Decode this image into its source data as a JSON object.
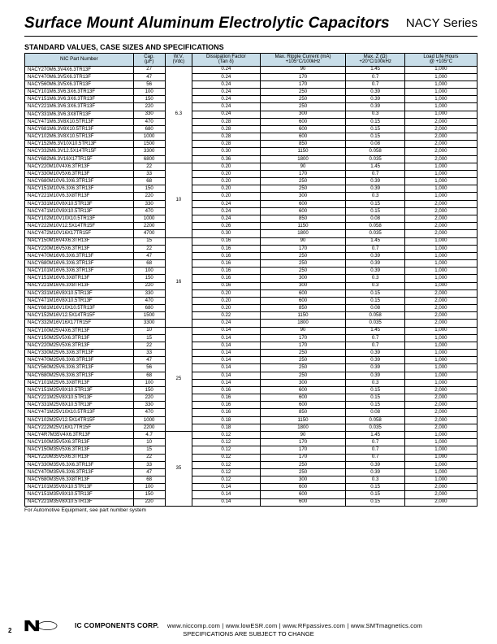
{
  "title": "Surface Mount Aluminum Electrolytic Capacitors",
  "series": "NACY Series",
  "subhead": "STANDARD VALUES, CASE SIZES AND SPECIFICATIONS",
  "columns": [
    "NIC Part Number",
    "Cap.\n(µF)",
    "W.V.\n(Vdc)",
    "Dissipation Factor\n(Tan δ)",
    "Max. Ripple Current (mA)\n+105°C/100kHz",
    "Max. Z (Ω)\n+20°C/100kHz",
    "Load Life Hours\n@ +105°C"
  ],
  "header_bg": "#c8dde8",
  "groups": [
    {
      "wv": "6.3",
      "rows": [
        [
          "NACY270M6.3V4X6.3TR13F",
          "27",
          "0.24",
          "90",
          "1.45",
          "1,000"
        ],
        [
          "NACY470M6.3V5X6.3TR13F",
          "47",
          "0.24",
          "170",
          "0.7",
          "1,000"
        ],
        [
          "NACY560M6.3V5X6.3TR13F",
          "56",
          "0.24",
          "170",
          "0.7",
          "1,000"
        ],
        [
          "NACY101M6.3V6.3X6.3TR13F",
          "100",
          "0.24",
          "250",
          "0.39",
          "1,000"
        ],
        [
          "NACY151M6.3V6.3X6.3TR13F",
          "150",
          "0.24",
          "250",
          "0.39",
          "1,000"
        ],
        [
          "NACY221M6.3V6.3X6.3TR13F",
          "220",
          "0.24",
          "250",
          "0.39",
          "1,000"
        ],
        [
          "NACY331M6.3V6.3X8TR13F",
          "330",
          "0.24",
          "300",
          "0.3",
          "1,000"
        ],
        [
          "NACY471M6.3V8X10.5TR13F",
          "470",
          "0.28",
          "600",
          "0.15",
          "2,000"
        ],
        [
          "NACY681M6.3V8X10.5TR13F",
          "680",
          "0.28",
          "600",
          "0.15",
          "2,000"
        ],
        [
          "NACY102M6.3V8X10.5TR13F",
          "1000",
          "0.28",
          "600",
          "0.15",
          "2,000"
        ],
        [
          "NACY152M6.3V10X10.5TR13F",
          "1500",
          "0.28",
          "850",
          "0.08",
          "2,000"
        ],
        [
          "NACY332M6.3V12.5X14TR15F",
          "3300",
          "0.30",
          "1150",
          "0.058",
          "2,000"
        ],
        [
          "NACY682M6.3V16X17TR15F",
          "6800",
          "0.36",
          "1800",
          "0.035",
          "2,000"
        ]
      ]
    },
    {
      "wv": "10",
      "rows": [
        [
          "NACY220M10V4X6.3TR13F",
          "22",
          "0.20",
          "90",
          "1.45",
          "1,000"
        ],
        [
          "NACY330M10V5X6.3TR13F",
          "33",
          "0.20",
          "170",
          "0.7",
          "1,000"
        ],
        [
          "NACY680M10V6.3X6.3TR13F",
          "68",
          "0.20",
          "250",
          "0.39",
          "1,000"
        ],
        [
          "NACY151M10V6.3X6.3TR13F",
          "150",
          "0.20",
          "250",
          "0.39",
          "1,000"
        ],
        [
          "NACY221M10V6.3X8TR13F",
          "220",
          "0.20",
          "300",
          "0.3",
          "1,000"
        ],
        [
          "NACY331M10V8X10.5TR13F",
          "330",
          "0.24",
          "600",
          "0.15",
          "2,000"
        ],
        [
          "NACY471M10V8X10.5TR13F",
          "470",
          "0.24",
          "600",
          "0.15",
          "2,000"
        ],
        [
          "NACY102M10V10X10.5TR13F",
          "1000",
          "0.24",
          "850",
          "0.08",
          "2,000"
        ],
        [
          "NACY222M10V12.5X14TR15F",
          "2200",
          "0.26",
          "1150",
          "0.058",
          "2,000"
        ],
        [
          "NACY472M10V16X17TR15F",
          "4700",
          "0.30",
          "1800",
          "0.035",
          "2,000"
        ]
      ]
    },
    {
      "wv": "16",
      "rows": [
        [
          "NACY150M16V4X6.3TR13F",
          "15",
          "0.16",
          "90",
          "1.45",
          "1,000"
        ],
        [
          "NACY220M16V5X6.3TR13F",
          "22",
          "0.16",
          "170",
          "0.7",
          "1,000"
        ],
        [
          "NACY470M16V6.3X6.3TR13F",
          "47",
          "0.16",
          "250",
          "0.39",
          "1,000"
        ],
        [
          "NACY680M16V6.3X6.3TR13F",
          "68",
          "0.16",
          "250",
          "0.39",
          "1,000"
        ],
        [
          "NACY101M16V6.3X6.3TR13F",
          "100",
          "0.16",
          "250",
          "0.39",
          "1,000"
        ],
        [
          "NACY151M16V6.3X8TR13F",
          "150",
          "0.16",
          "300",
          "0.3",
          "1,000"
        ],
        [
          "NACY221M16V6.3X8TR13F",
          "220",
          "0.16",
          "300",
          "0.3",
          "1,000"
        ],
        [
          "NACY331M16V8X10.5TR13F",
          "330",
          "0.20",
          "600",
          "0.15",
          "2,000"
        ],
        [
          "NACY471M16V8X10.5TR13F",
          "470",
          "0.20",
          "600",
          "0.15",
          "2,000"
        ],
        [
          "NACY681M16V10X10.5TR13F",
          "680",
          "0.20",
          "850",
          "0.08",
          "2,000"
        ],
        [
          "NACY152M16V12.5X14TR15F",
          "1500",
          "0.22",
          "1150",
          "0.058",
          "2,000"
        ],
        [
          "NACY332M16V16X17TR15F",
          "3300",
          "0.24",
          "1800",
          "0.035",
          "2,000"
        ]
      ]
    },
    {
      "wv": "25",
      "rows": [
        [
          "NACY100M25V4X6.3TR13F",
          "10",
          "0.14",
          "90",
          "1.45",
          "1,000"
        ],
        [
          "NACY150M25V5X6.3TR13F",
          "15",
          "0.14",
          "170",
          "0.7",
          "1,000"
        ],
        [
          "NACY220M25V5X6.3TR13F",
          "22",
          "0.14",
          "170",
          "0.7",
          "1,000"
        ],
        [
          "NACY330M25V6.3X6.3TR13F",
          "33",
          "0.14",
          "250",
          "0.39",
          "1,000"
        ],
        [
          "NACY470M25V6.3X6.3TR13F",
          "47",
          "0.14",
          "250",
          "0.39",
          "1,000"
        ],
        [
          "NACY560M25V6.3X6.3TR13F",
          "56",
          "0.14",
          "250",
          "0.39",
          "1,000"
        ],
        [
          "NACY680M25V6.3X6.3TR13F",
          "68",
          "0.14",
          "250",
          "0.39",
          "1,000"
        ],
        [
          "NACY101M25V6.3X8TR13F",
          "100",
          "0.14",
          "300",
          "0.3",
          "1,000"
        ],
        [
          "NACY151M25V8X10.5TR13F",
          "150",
          "0.16",
          "600",
          "0.15",
          "2,000"
        ],
        [
          "NACY221M25V8X10.5TR13F",
          "220",
          "0.16",
          "600",
          "0.15",
          "2,000"
        ],
        [
          "NACY331M25V8X10.5TR13F",
          "330",
          "0.16",
          "600",
          "0.15",
          "2,000"
        ],
        [
          "NACY471M25V10X10.5TR13F",
          "470",
          "0.16",
          "850",
          "0.08",
          "2,000"
        ],
        [
          "NACY102M25V12.5X14TR15F",
          "1000",
          "0.18",
          "1150",
          "0.058",
          "2,000"
        ],
        [
          "NACY222M25V16X17TR15F",
          "2200",
          "0.18",
          "1800",
          "0.035",
          "2,000"
        ]
      ]
    },
    {
      "wv": "35",
      "rows": [
        [
          "NACY4R7M35V4X6.3TR13F",
          "4.7",
          "0.12",
          "90",
          "1.45",
          "1,000"
        ],
        [
          "NACY100M35V5X6.3TR13F",
          "10",
          "0.12",
          "170",
          "0.7",
          "1,000"
        ],
        [
          "NACY150M35V5X6.3TR13F",
          "15",
          "0.12",
          "170",
          "0.7",
          "1,000"
        ],
        [
          "NACY220M35V5X6.3TR13F",
          "22",
          "0.12",
          "170",
          "0.7",
          "1,000"
        ],
        [
          "NACY330M35V6.3X6.3TR13F",
          "33",
          "0.12",
          "250",
          "0.39",
          "1,000"
        ],
        [
          "NACY470M35V6.3X6.3TR13F",
          "47",
          "0.12",
          "250",
          "0.39",
          "1,000"
        ],
        [
          "NACY680M35V6.3X8TR13F",
          "68",
          "0.12",
          "300",
          "0.3",
          "1,000"
        ],
        [
          "NACY101M35V8X10.5TR13F",
          "100",
          "0.14",
          "600",
          "0.15",
          "2,000"
        ],
        [
          "NACY151M35V8X10.5TR13F",
          "150",
          "0.14",
          "600",
          "0.15",
          "2,000"
        ],
        [
          "NACY221M35V8X10.5TR13F",
          "220",
          "0.14",
          "600",
          "0.15",
          "2,000"
        ]
      ]
    }
  ],
  "footnote": "For Automotive Equipment, see part number system",
  "footer": {
    "corp": "IC COMPONENTS CORP.",
    "sites": "www.niccomp.com  |  www.lowESR.com  |  www.RFpassives.com  |  www.SMTmagnetics.com",
    "notice": "SPECIFICATIONS ARE SUBJECT TO CHANGE"
  },
  "page_number": "2"
}
